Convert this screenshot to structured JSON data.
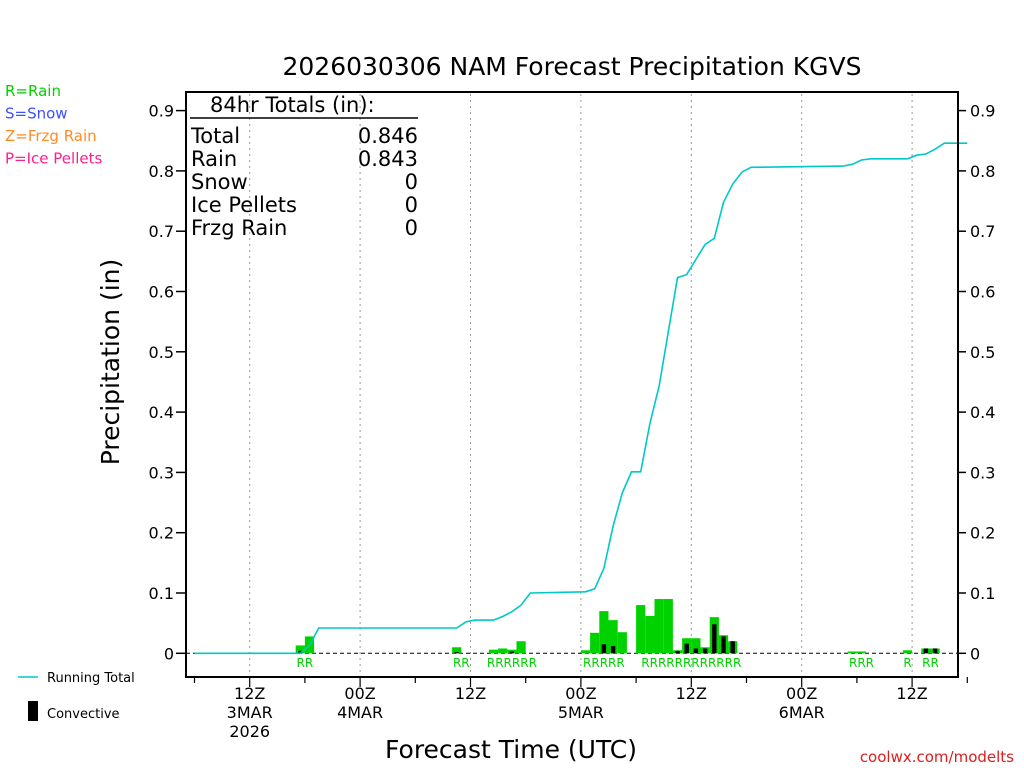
{
  "chart_data": {
    "type": "bar+line",
    "title": "2026030306 NAM Forecast Precipitation KGVS",
    "xlabel": "Forecast Time (UTC)",
    "ylabel": "Precipitation (in)",
    "ylim": [
      0,
      0.9
    ],
    "yticks": [
      "0",
      "0.1",
      "0.2",
      "0.3",
      "0.4",
      "0.5",
      "0.6",
      "0.7",
      "0.8",
      "0.9"
    ],
    "x_unit": "forecast hours since 2026-03-03 06Z",
    "xlim": [
      0,
      84
    ],
    "xticks": [
      {
        "hour": 6,
        "line1": "12Z",
        "line2": "3MAR",
        "line3": "2026"
      },
      {
        "hour": 18,
        "line1": "00Z",
        "line2": "4MAR",
        "line3": ""
      },
      {
        "hour": 30,
        "line1": "12Z",
        "line2": "",
        "line3": ""
      },
      {
        "hour": 42,
        "line1": "00Z",
        "line2": "5MAR",
        "line3": ""
      },
      {
        "hour": 54,
        "line1": "12Z",
        "line2": "",
        "line3": ""
      },
      {
        "hour": 66,
        "line1": "00Z",
        "line2": "6MAR",
        "line3": ""
      },
      {
        "hour": 78,
        "line1": "12Z",
        "line2": "",
        "line3": ""
      }
    ],
    "grid_hours": [
      6,
      18,
      30,
      42,
      54,
      66,
      78
    ],
    "series": [
      {
        "name": "Hourly Precip",
        "kind": "bar",
        "color": "#00d200",
        "points": [
          {
            "h": 12,
            "v": 0.013
          },
          {
            "h": 13,
            "v": 0.028
          },
          {
            "h": 29,
            "v": 0.01
          },
          {
            "h": 33,
            "v": 0.006
          },
          {
            "h": 34,
            "v": 0.008
          },
          {
            "h": 35,
            "v": 0.006
          },
          {
            "h": 36,
            "v": 0.02
          },
          {
            "h": 43,
            "v": 0.005
          },
          {
            "h": 44,
            "v": 0.034
          },
          {
            "h": 45,
            "v": 0.07
          },
          {
            "h": 46,
            "v": 0.055
          },
          {
            "h": 47,
            "v": 0.035
          },
          {
            "h": 49,
            "v": 0.08
          },
          {
            "h": 50,
            "v": 0.062
          },
          {
            "h": 51,
            "v": 0.09
          },
          {
            "h": 52,
            "v": 0.09
          },
          {
            "h": 53,
            "v": 0.005
          },
          {
            "h": 54,
            "v": 0.025
          },
          {
            "h": 55,
            "v": 0.025
          },
          {
            "h": 56,
            "v": 0.01
          },
          {
            "h": 57,
            "v": 0.06
          },
          {
            "h": 58,
            "v": 0.03
          },
          {
            "h": 59,
            "v": 0.02
          },
          {
            "h": 72,
            "v": 0.003
          },
          {
            "h": 73,
            "v": 0.003
          },
          {
            "h": 78,
            "v": 0.005
          },
          {
            "h": 80,
            "v": 0.008
          },
          {
            "h": 81,
            "v": 0.008
          }
        ]
      },
      {
        "name": "Convective",
        "kind": "bar",
        "color": "#000000",
        "points": [
          {
            "h": 12,
            "v": 0.004
          },
          {
            "h": 29,
            "v": 0.002
          },
          {
            "h": 35,
            "v": 0.003
          },
          {
            "h": 45,
            "v": 0.015
          },
          {
            "h": 46,
            "v": 0.012
          },
          {
            "h": 53,
            "v": 0.004
          },
          {
            "h": 54,
            "v": 0.016
          },
          {
            "h": 55,
            "v": 0.008
          },
          {
            "h": 56,
            "v": 0.008
          },
          {
            "h": 57,
            "v": 0.048
          },
          {
            "h": 58,
            "v": 0.028
          },
          {
            "h": 59,
            "v": 0.02
          },
          {
            "h": 80,
            "v": 0.008
          },
          {
            "h": 81,
            "v": 0.008
          }
        ]
      },
      {
        "name": "Running Total",
        "kind": "line",
        "color": "#00c8c8",
        "points": [
          {
            "h": 0,
            "v": 0
          },
          {
            "h": 11.5,
            "v": 0
          },
          {
            "h": 12.5,
            "v": 0.013
          },
          {
            "h": 13.5,
            "v": 0.042
          },
          {
            "h": 28.5,
            "v": 0.042
          },
          {
            "h": 29.5,
            "v": 0.052
          },
          {
            "h": 30.5,
            "v": 0.055
          },
          {
            "h": 32.5,
            "v": 0.055
          },
          {
            "h": 33.5,
            "v": 0.061
          },
          {
            "h": 34.5,
            "v": 0.069
          },
          {
            "h": 35.5,
            "v": 0.08
          },
          {
            "h": 36.5,
            "v": 0.1
          },
          {
            "h": 42.5,
            "v": 0.102
          },
          {
            "h": 43.5,
            "v": 0.107
          },
          {
            "h": 44.5,
            "v": 0.141
          },
          {
            "h": 45.5,
            "v": 0.211
          },
          {
            "h": 46.5,
            "v": 0.266
          },
          {
            "h": 47.5,
            "v": 0.301
          },
          {
            "h": 48.5,
            "v": 0.301
          },
          {
            "h": 49.5,
            "v": 0.381
          },
          {
            "h": 50.5,
            "v": 0.443
          },
          {
            "h": 51.5,
            "v": 0.533
          },
          {
            "h": 52.5,
            "v": 0.623
          },
          {
            "h": 53.5,
            "v": 0.628
          },
          {
            "h": 54.5,
            "v": 0.653
          },
          {
            "h": 55.5,
            "v": 0.678
          },
          {
            "h": 56.5,
            "v": 0.688
          },
          {
            "h": 57.5,
            "v": 0.748
          },
          {
            "h": 58.5,
            "v": 0.778
          },
          {
            "h": 59.5,
            "v": 0.798
          },
          {
            "h": 60.5,
            "v": 0.806
          },
          {
            "h": 70.5,
            "v": 0.808
          },
          {
            "h": 71.5,
            "v": 0.811
          },
          {
            "h": 72.5,
            "v": 0.818
          },
          {
            "h": 73.5,
            "v": 0.82
          },
          {
            "h": 77.5,
            "v": 0.82
          },
          {
            "h": 78.5,
            "v": 0.826
          },
          {
            "h": 79.5,
            "v": 0.828
          },
          {
            "h": 80.5,
            "v": 0.836
          },
          {
            "h": 81.5,
            "v": 0.846
          },
          {
            "h": 84,
            "v": 0.846
          }
        ]
      }
    ],
    "ptype_groups": [
      {
        "h": 12.5,
        "text": "RR"
      },
      {
        "h": 29.5,
        "text": "RR"
      },
      {
        "h": 35,
        "text": "RRRRRR"
      },
      {
        "h": 45,
        "text": "RRRRR"
      },
      {
        "h": 54.5,
        "text": "RRRRRRRRRRRR"
      },
      {
        "h": 73,
        "text": "RRR"
      },
      {
        "h": 78,
        "text": "R"
      },
      {
        "h": 80.5,
        "text": "RR"
      }
    ],
    "totals": {
      "header": "84hr Totals (in):",
      "rows": [
        {
          "label": "Total",
          "value": "0.846"
        },
        {
          "label": "Rain",
          "value": "0.843"
        },
        {
          "label": "Snow",
          "value": "0"
        },
        {
          "label": "Ice Pellets",
          "value": "0"
        },
        {
          "label": "Frzg Rain",
          "value": "0"
        }
      ]
    },
    "type_legend": [
      {
        "text": "R=Rain",
        "color": "#00d200"
      },
      {
        "text": "S=Snow",
        "color": "#3c50ff"
      },
      {
        "text": "Z=Frzg Rain",
        "color": "#ff8c28"
      },
      {
        "text": "P=Ice Pellets",
        "color": "#ff1e8c"
      }
    ],
    "line_legend": [
      {
        "text": "Running Total",
        "kind": "line",
        "color": "#00c8c8"
      },
      {
        "text": "Convective",
        "kind": "bar",
        "color": "#000000"
      }
    ]
  },
  "credit": "coolwx.com/modelts",
  "colors": {
    "credit": "#dc1e1e",
    "ptype_label": "#00d200"
  }
}
